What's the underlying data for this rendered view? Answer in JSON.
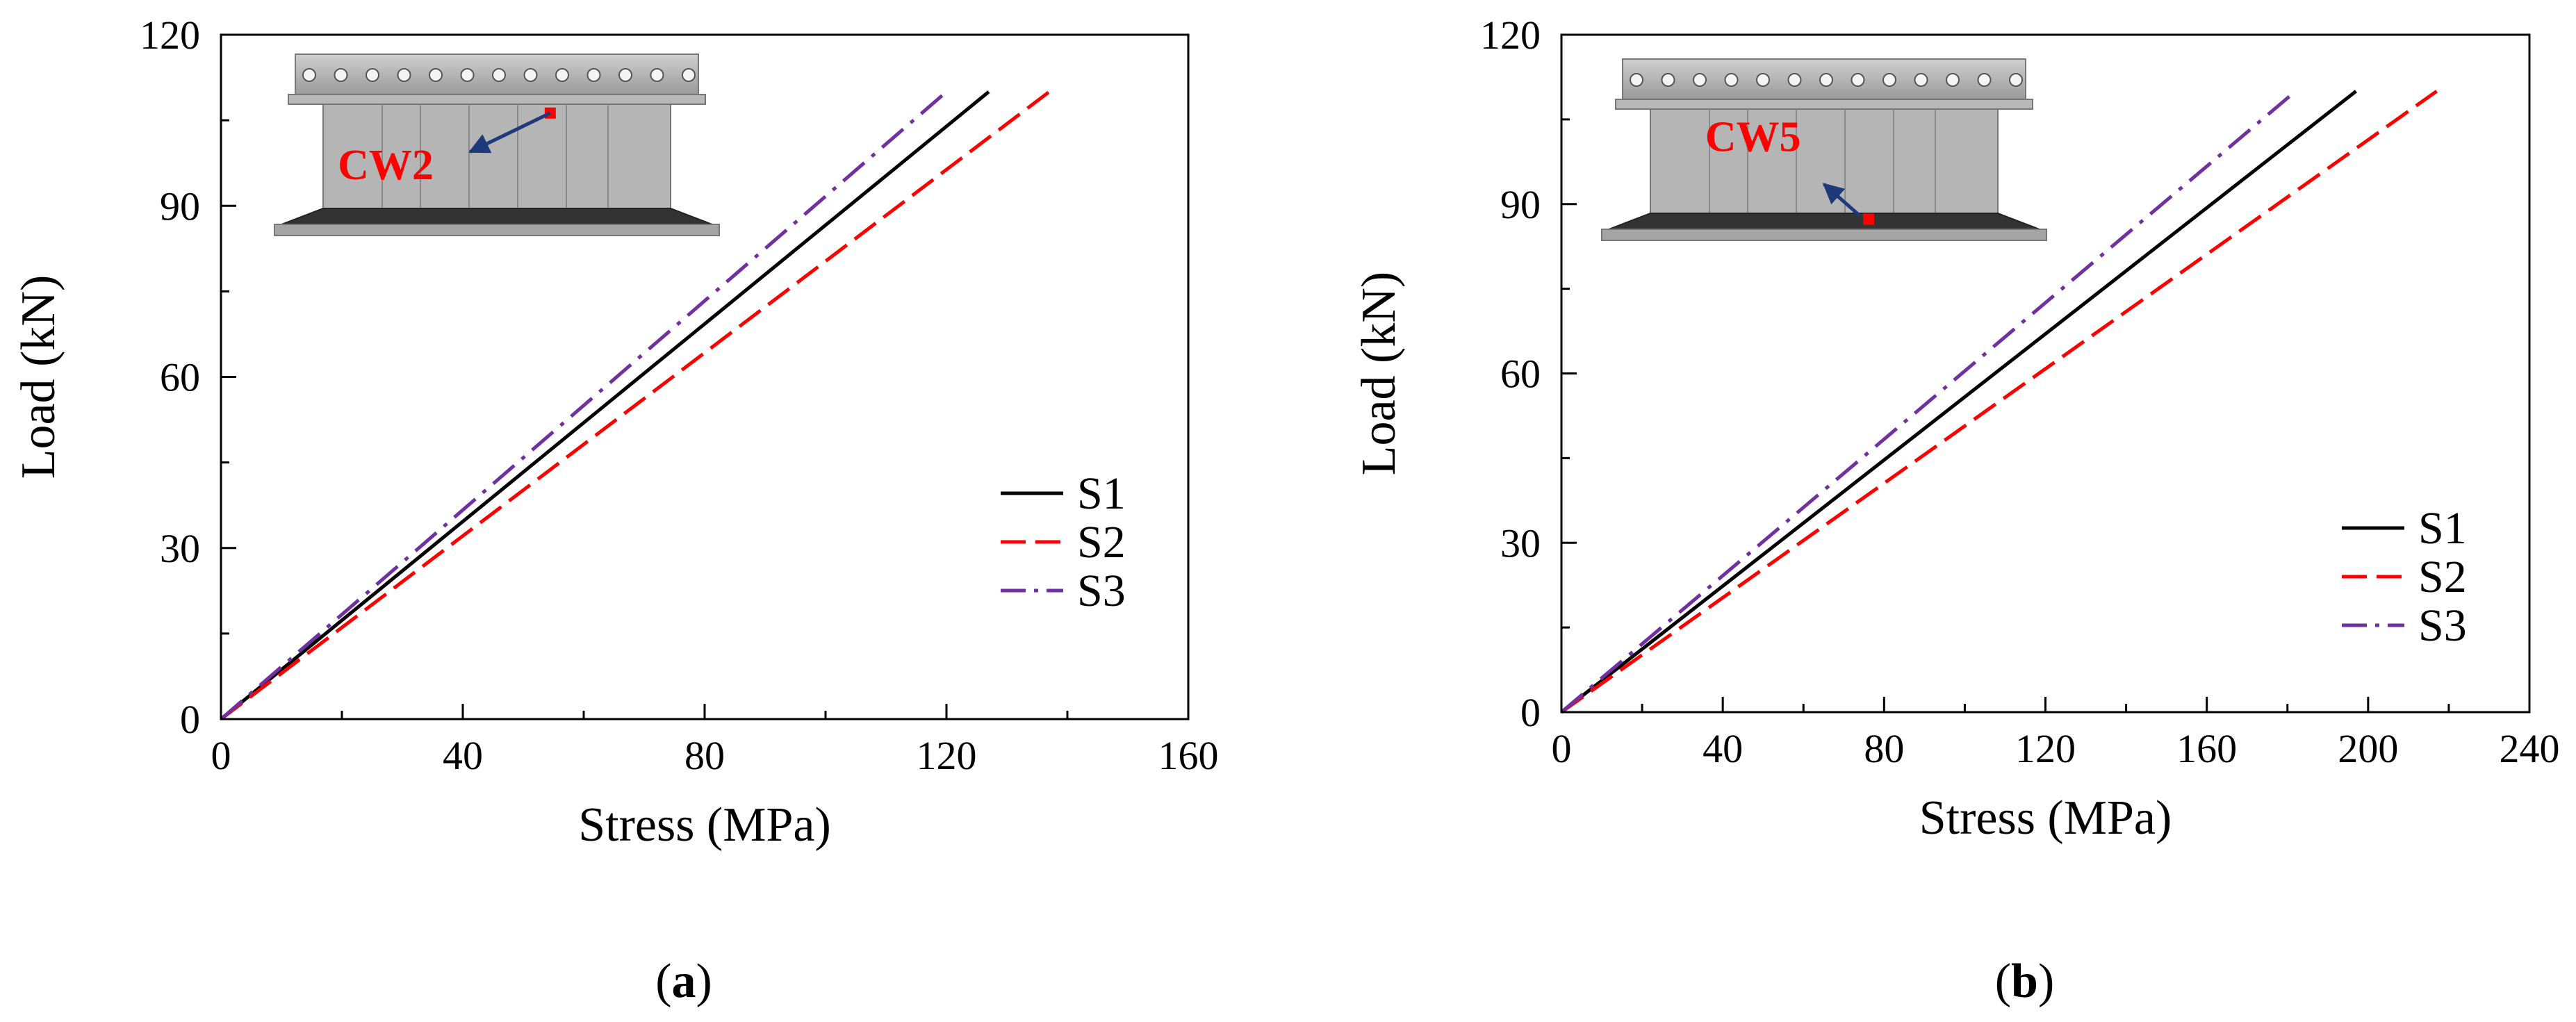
{
  "chart_data": [
    {
      "type": "line",
      "panel_label": "a",
      "xlabel": "Stress (MPa)",
      "ylabel": "Load (kN)",
      "xlim": [
        0,
        160
      ],
      "ylim": [
        0,
        120
      ],
      "xticks": [
        0,
        40,
        80,
        120,
        160
      ],
      "yticks": [
        0,
        30,
        60,
        90,
        120
      ],
      "grid": false,
      "legend_position": "lower-right",
      "inset": {
        "label": "CW2",
        "marker_color": "#ff0000",
        "arrow_color": "#1f3a7a"
      },
      "series": [
        {
          "name": "S1",
          "color": "#000000",
          "dash": "solid",
          "x": [
            0,
            127
          ],
          "y": [
            0,
            110
          ]
        },
        {
          "name": "S2",
          "color": "#ff0000",
          "dash": "dash",
          "x": [
            0,
            137
          ],
          "y": [
            0,
            110
          ]
        },
        {
          "name": "S3",
          "color": "#7030a0",
          "dash": "dashdot",
          "x": [
            0,
            120
          ],
          "y": [
            0,
            110
          ]
        }
      ]
    },
    {
      "type": "line",
      "panel_label": "b",
      "xlabel": "Stress (MPa)",
      "ylabel": "Load (kN)",
      "xlim": [
        0,
        240
      ],
      "ylim": [
        0,
        120
      ],
      "xticks": [
        0,
        40,
        80,
        120,
        160,
        200,
        240
      ],
      "yticks": [
        0,
        30,
        60,
        90,
        120
      ],
      "grid": false,
      "legend_position": "lower-right",
      "inset": {
        "label": "CW5",
        "marker_color": "#ff0000",
        "arrow_color": "#1f3a7a"
      },
      "series": [
        {
          "name": "S1",
          "color": "#000000",
          "dash": "solid",
          "x": [
            0,
            197
          ],
          "y": [
            0,
            110
          ]
        },
        {
          "name": "S2",
          "color": "#ff0000",
          "dash": "dash",
          "x": [
            0,
            217
          ],
          "y": [
            0,
            110
          ]
        },
        {
          "name": "S3",
          "color": "#7030a0",
          "dash": "dashdot",
          "x": [
            0,
            182
          ],
          "y": [
            0,
            110
          ]
        }
      ]
    }
  ]
}
